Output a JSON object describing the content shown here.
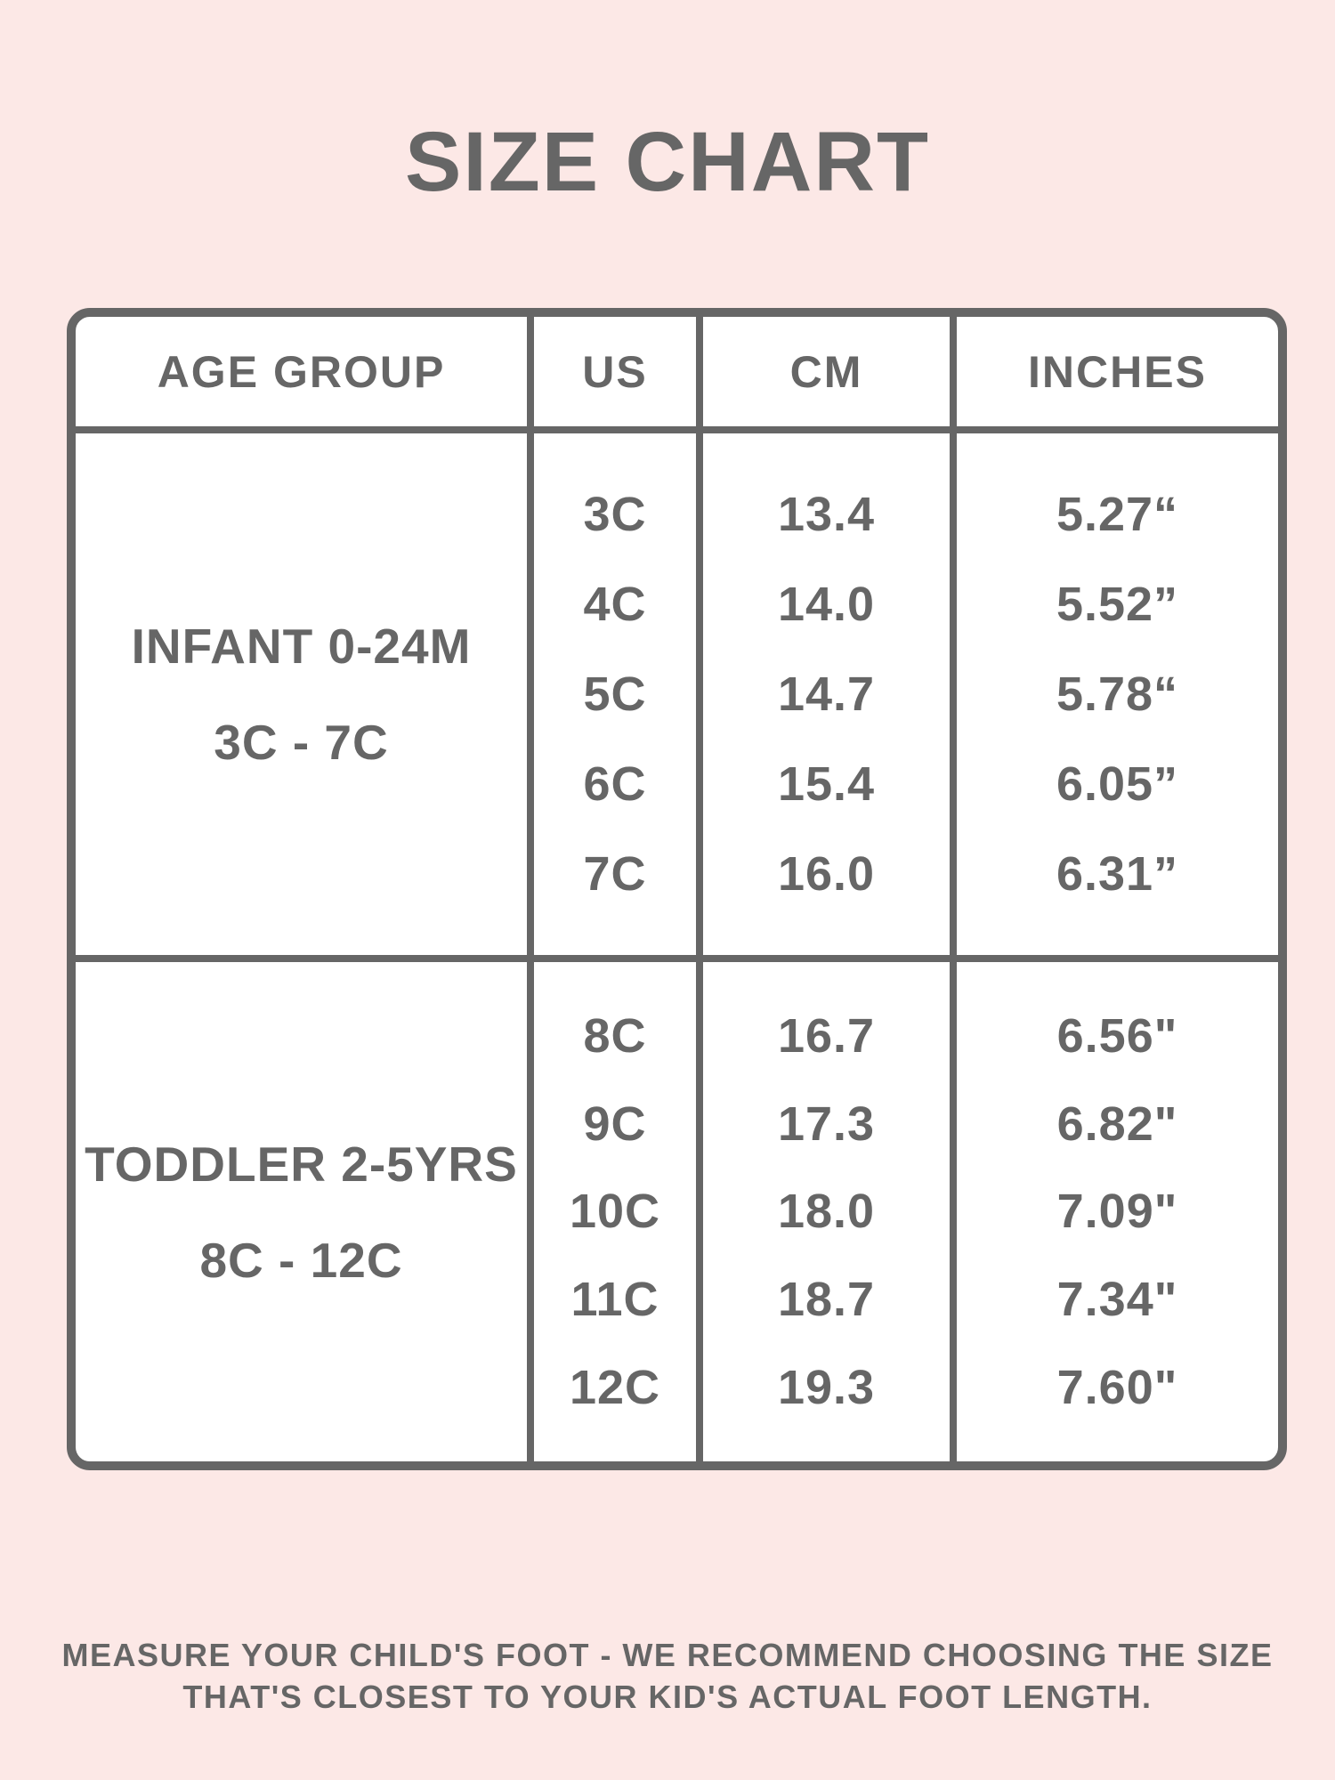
{
  "colors": {
    "background": "#fce8e6",
    "table_background": "#ffffff",
    "text": "#666666",
    "border": "#666666"
  },
  "chart_data": {
    "type": "table",
    "title": "SIZE CHART",
    "columns": [
      "AGE GROUP",
      "US",
      "CM",
      "INCHES"
    ],
    "sections": [
      {
        "age_group": "INFANT 0-24M",
        "size_range": "3C - 7C",
        "rows": [
          {
            "us": "3C",
            "cm": "13.4",
            "inches": "5.27“"
          },
          {
            "us": "4C",
            "cm": "14.0",
            "inches": "5.52”"
          },
          {
            "us": "5C",
            "cm": "14.7",
            "inches": "5.78“"
          },
          {
            "us": "6C",
            "cm": "15.4",
            "inches": "6.05”"
          },
          {
            "us": "7C",
            "cm": "16.0",
            "inches": "6.31”"
          }
        ]
      },
      {
        "age_group": "TODDLER 2-5YRS",
        "size_range": "8C - 12C",
        "rows": [
          {
            "us": "8C",
            "cm": "16.7",
            "inches": "6.56\""
          },
          {
            "us": "9C",
            "cm": "17.3",
            "inches": "6.82\""
          },
          {
            "us": "10C",
            "cm": "18.0",
            "inches": "7.09\""
          },
          {
            "us": "11C",
            "cm": "18.7",
            "inches": "7.34\""
          },
          {
            "us": "12C",
            "cm": "19.3",
            "inches": "7.60\""
          }
        ]
      }
    ]
  },
  "footer": {
    "line1": "MEASURE YOUR CHILD'S FOOT - WE RECOMMEND CHOOSING THE SIZE",
    "line2": "THAT'S CLOSEST TO YOUR KID'S ACTUAL FOOT LENGTH."
  }
}
